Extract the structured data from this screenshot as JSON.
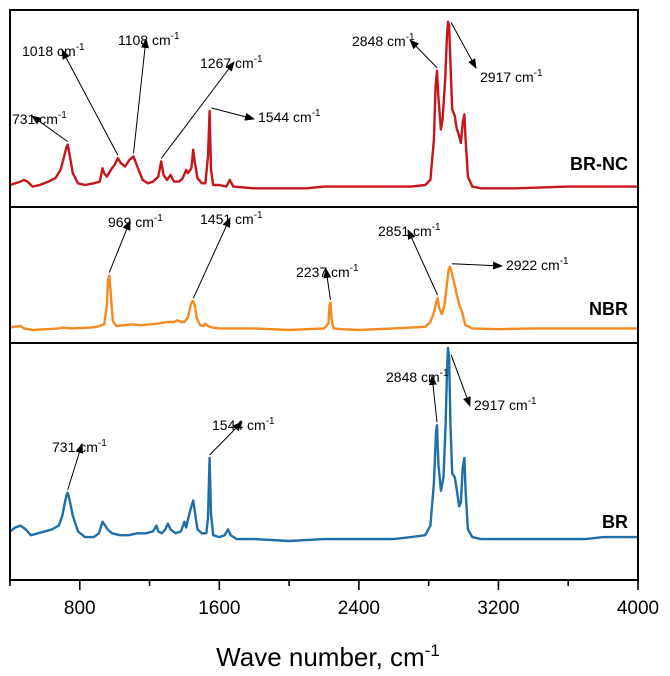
{
  "chart_data": {
    "type": "line",
    "title": "",
    "xlabel": "Wave number, cm",
    "xlabel_sup": "-1",
    "ylabel": "",
    "xlim": [
      400,
      4000
    ],
    "xticks": [
      800,
      1600,
      2400,
      3200,
      4000
    ],
    "xtick_labels": [
      "800",
      "1600",
      "2400",
      "3200",
      "4000"
    ],
    "unit": "cm",
    "unit_sup": "-1",
    "panels": [
      {
        "name": "BR-NC",
        "color": "#c5161b",
        "y_range": [
          0,
          1
        ],
        "points": [
          [
            400,
            0.03
          ],
          [
            430,
            0.04
          ],
          [
            460,
            0.05
          ],
          [
            480,
            0.06
          ],
          [
            500,
            0.05
          ],
          [
            530,
            0.02
          ],
          [
            570,
            0.03
          ],
          [
            620,
            0.05
          ],
          [
            660,
            0.07
          ],
          [
            690,
            0.12
          ],
          [
            710,
            0.2
          ],
          [
            725,
            0.26
          ],
          [
            731,
            0.27
          ],
          [
            740,
            0.22
          ],
          [
            760,
            0.1
          ],
          [
            790,
            0.04
          ],
          [
            830,
            0.03
          ],
          [
            880,
            0.04
          ],
          [
            915,
            0.05
          ],
          [
            930,
            0.13
          ],
          [
            940,
            0.1
          ],
          [
            955,
            0.08
          ],
          [
            985,
            0.13
          ],
          [
            1000,
            0.15
          ],
          [
            1018,
            0.19
          ],
          [
            1035,
            0.16
          ],
          [
            1060,
            0.14
          ],
          [
            1085,
            0.18
          ],
          [
            1108,
            0.2
          ],
          [
            1130,
            0.14
          ],
          [
            1160,
            0.06
          ],
          [
            1190,
            0.04
          ],
          [
            1220,
            0.05
          ],
          [
            1250,
            0.08
          ],
          [
            1267,
            0.17
          ],
          [
            1280,
            0.09
          ],
          [
            1300,
            0.06
          ],
          [
            1320,
            0.09
          ],
          [
            1340,
            0.05
          ],
          [
            1370,
            0.05
          ],
          [
            1390,
            0.07
          ],
          [
            1410,
            0.12
          ],
          [
            1420,
            0.1
          ],
          [
            1440,
            0.13
          ],
          [
            1450,
            0.24
          ],
          [
            1460,
            0.16
          ],
          [
            1475,
            0.07
          ],
          [
            1500,
            0.04
          ],
          [
            1520,
            0.04
          ],
          [
            1535,
            0.2
          ],
          [
            1544,
            0.47
          ],
          [
            1552,
            0.12
          ],
          [
            1565,
            0.03
          ],
          [
            1600,
            0.03
          ],
          [
            1640,
            0.02
          ],
          [
            1660,
            0.06
          ],
          [
            1680,
            0.02
          ],
          [
            1800,
            0.01
          ],
          [
            2000,
            0.01
          ],
          [
            2100,
            0.01
          ],
          [
            2200,
            0.02
          ],
          [
            2300,
            0.02
          ],
          [
            2400,
            0.02
          ],
          [
            2600,
            0.02
          ],
          [
            2700,
            0.02
          ],
          [
            2780,
            0.03
          ],
          [
            2810,
            0.06
          ],
          [
            2830,
            0.3
          ],
          [
            2840,
            0.62
          ],
          [
            2848,
            0.71
          ],
          [
            2856,
            0.55
          ],
          [
            2870,
            0.36
          ],
          [
            2880,
            0.42
          ],
          [
            2895,
            0.66
          ],
          [
            2905,
            0.92
          ],
          [
            2911,
            1.0
          ],
          [
            2917,
            0.98
          ],
          [
            2925,
            0.75
          ],
          [
            2935,
            0.48
          ],
          [
            2950,
            0.44
          ],
          [
            2960,
            0.37
          ],
          [
            2975,
            0.32
          ],
          [
            2985,
            0.28
          ],
          [
            2995,
            0.4
          ],
          [
            3005,
            0.45
          ],
          [
            3012,
            0.3
          ],
          [
            3025,
            0.08
          ],
          [
            3050,
            0.02
          ],
          [
            3100,
            0.01
          ],
          [
            3300,
            0.01
          ],
          [
            3600,
            0.02
          ],
          [
            3800,
            0.02
          ],
          [
            4000,
            0.02
          ]
        ]
      },
      {
        "name": "NBR",
        "color": "#f58a1f",
        "y_range": [
          0,
          1
        ],
        "points": [
          [
            400,
            0.03
          ],
          [
            420,
            0.04
          ],
          [
            460,
            0.05
          ],
          [
            480,
            0.02
          ],
          [
            530,
            0.0
          ],
          [
            600,
            0.01
          ],
          [
            680,
            0.02
          ],
          [
            700,
            0.03
          ],
          [
            760,
            0.02
          ],
          [
            860,
            0.03
          ],
          [
            900,
            0.04
          ],
          [
            940,
            0.07
          ],
          [
            955,
            0.3
          ],
          [
            962,
            0.62
          ],
          [
            969,
            0.68
          ],
          [
            978,
            0.45
          ],
          [
            990,
            0.11
          ],
          [
            1010,
            0.05
          ],
          [
            1050,
            0.06
          ],
          [
            1100,
            0.07
          ],
          [
            1150,
            0.06
          ],
          [
            1200,
            0.07
          ],
          [
            1250,
            0.08
          ],
          [
            1300,
            0.1
          ],
          [
            1340,
            0.1
          ],
          [
            1360,
            0.12
          ],
          [
            1380,
            0.1
          ],
          [
            1400,
            0.1
          ],
          [
            1420,
            0.16
          ],
          [
            1435,
            0.3
          ],
          [
            1445,
            0.36
          ],
          [
            1451,
            0.36
          ],
          [
            1460,
            0.3
          ],
          [
            1470,
            0.15
          ],
          [
            1490,
            0.06
          ],
          [
            1510,
            0.05
          ],
          [
            1520,
            0.08
          ],
          [
            1535,
            0.05
          ],
          [
            1560,
            0.03
          ],
          [
            1600,
            0.02
          ],
          [
            1700,
            0.02
          ],
          [
            1800,
            0.02
          ],
          [
            1900,
            0.01
          ],
          [
            2000,
            0.0
          ],
          [
            2100,
            0.01
          ],
          [
            2200,
            0.02
          ],
          [
            2225,
            0.08
          ],
          [
            2232,
            0.32
          ],
          [
            2237,
            0.34
          ],
          [
            2244,
            0.12
          ],
          [
            2255,
            0.02
          ],
          [
            2300,
            0.01
          ],
          [
            2400,
            0.0
          ],
          [
            2600,
            0.02
          ],
          [
            2700,
            0.03
          ],
          [
            2780,
            0.04
          ],
          [
            2810,
            0.1
          ],
          [
            2830,
            0.22
          ],
          [
            2845,
            0.36
          ],
          [
            2851,
            0.4
          ],
          [
            2860,
            0.28
          ],
          [
            2875,
            0.2
          ],
          [
            2890,
            0.3
          ],
          [
            2905,
            0.58
          ],
          [
            2915,
            0.76
          ],
          [
            2922,
            0.79
          ],
          [
            2932,
            0.72
          ],
          [
            2945,
            0.6
          ],
          [
            2960,
            0.45
          ],
          [
            2975,
            0.32
          ],
          [
            2995,
            0.2
          ],
          [
            3010,
            0.06
          ],
          [
            3050,
            0.02
          ],
          [
            3200,
            0.01
          ],
          [
            3400,
            0.02
          ],
          [
            3700,
            0.02
          ],
          [
            4000,
            0.02
          ]
        ]
      },
      {
        "name": "BR",
        "color": "#1f6fa8",
        "y_range": [
          0,
          1
        ],
        "points": [
          [
            400,
            0.05
          ],
          [
            430,
            0.07
          ],
          [
            460,
            0.08
          ],
          [
            490,
            0.06
          ],
          [
            520,
            0.03
          ],
          [
            560,
            0.04
          ],
          [
            600,
            0.05
          ],
          [
            640,
            0.06
          ],
          [
            680,
            0.08
          ],
          [
            700,
            0.13
          ],
          [
            715,
            0.2
          ],
          [
            725,
            0.24
          ],
          [
            731,
            0.25
          ],
          [
            740,
            0.22
          ],
          [
            760,
            0.13
          ],
          [
            790,
            0.05
          ],
          [
            830,
            0.02
          ],
          [
            880,
            0.02
          ],
          [
            910,
            0.04
          ],
          [
            930,
            0.1
          ],
          [
            945,
            0.08
          ],
          [
            960,
            0.06
          ],
          [
            985,
            0.04
          ],
          [
            1030,
            0.03
          ],
          [
            1080,
            0.03
          ],
          [
            1130,
            0.04
          ],
          [
            1180,
            0.04
          ],
          [
            1220,
            0.05
          ],
          [
            1240,
            0.08
          ],
          [
            1250,
            0.05
          ],
          [
            1270,
            0.04
          ],
          [
            1290,
            0.06
          ],
          [
            1305,
            0.09
          ],
          [
            1320,
            0.06
          ],
          [
            1350,
            0.04
          ],
          [
            1380,
            0.05
          ],
          [
            1400,
            0.1
          ],
          [
            1410,
            0.07
          ],
          [
            1425,
            0.13
          ],
          [
            1440,
            0.18
          ],
          [
            1450,
            0.21
          ],
          [
            1460,
            0.15
          ],
          [
            1475,
            0.06
          ],
          [
            1500,
            0.04
          ],
          [
            1525,
            0.04
          ],
          [
            1535,
            0.12
          ],
          [
            1544,
            0.43
          ],
          [
            1552,
            0.14
          ],
          [
            1565,
            0.03
          ],
          [
            1600,
            0.02
          ],
          [
            1630,
            0.03
          ],
          [
            1650,
            0.06
          ],
          [
            1665,
            0.03
          ],
          [
            1700,
            0.01
          ],
          [
            1800,
            0.01
          ],
          [
            2000,
            0.0
          ],
          [
            2200,
            0.01
          ],
          [
            2400,
            0.01
          ],
          [
            2600,
            0.01
          ],
          [
            2700,
            0.02
          ],
          [
            2780,
            0.03
          ],
          [
            2810,
            0.08
          ],
          [
            2830,
            0.3
          ],
          [
            2842,
            0.56
          ],
          [
            2848,
            0.6
          ],
          [
            2856,
            0.4
          ],
          [
            2870,
            0.26
          ],
          [
            2885,
            0.33
          ],
          [
            2897,
            0.6
          ],
          [
            2905,
            0.88
          ],
          [
            2911,
            1.0
          ],
          [
            2917,
            0.95
          ],
          [
            2925,
            0.6
          ],
          [
            2935,
            0.35
          ],
          [
            2950,
            0.33
          ],
          [
            2960,
            0.27
          ],
          [
            2975,
            0.18
          ],
          [
            2985,
            0.2
          ],
          [
            2995,
            0.38
          ],
          [
            3005,
            0.43
          ],
          [
            3012,
            0.26
          ],
          [
            3025,
            0.06
          ],
          [
            3050,
            0.02
          ],
          [
            3100,
            0.01
          ],
          [
            3400,
            0.01
          ],
          [
            3700,
            0.01
          ],
          [
            3800,
            0.02
          ],
          [
            4000,
            0.02
          ]
        ]
      }
    ],
    "annotations": [
      {
        "panel": 0,
        "text": "731 cm",
        "sup": "-1",
        "x": 731
      },
      {
        "panel": 0,
        "text": "1018 cm",
        "sup": "-1",
        "x": 1018
      },
      {
        "panel": 0,
        "text": "1108 cm",
        "sup": "-1",
        "x": 1108
      },
      {
        "panel": 0,
        "text": "1267 cm",
        "sup": "-1",
        "x": 1267
      },
      {
        "panel": 0,
        "text": "1544 cm",
        "sup": "-1",
        "x": 1544
      },
      {
        "panel": 0,
        "text": "2848 cm",
        "sup": "-1",
        "x": 2848
      },
      {
        "panel": 0,
        "text": "2917 cm",
        "sup": "-1",
        "x": 2917
      },
      {
        "panel": 1,
        "text": "969 cm",
        "sup": "-1",
        "x": 969
      },
      {
        "panel": 1,
        "text": "1451 cm",
        "sup": "-1",
        "x": 1451
      },
      {
        "panel": 1,
        "text": "2237 cm",
        "sup": "-1",
        "x": 2237
      },
      {
        "panel": 1,
        "text": "2851 cm",
        "sup": "-1",
        "x": 2851
      },
      {
        "panel": 1,
        "text": "2922 cm",
        "sup": "-1",
        "x": 2922
      },
      {
        "panel": 2,
        "text": "731 cm",
        "sup": "-1",
        "x": 731
      },
      {
        "panel": 2,
        "text": "1544 cm",
        "sup": "-1",
        "x": 1544
      },
      {
        "panel": 2,
        "text": "2848 cm",
        "sup": "-1",
        "x": 2848
      },
      {
        "panel": 2,
        "text": "2917 cm",
        "sup": "-1",
        "x": 2917
      }
    ]
  }
}
